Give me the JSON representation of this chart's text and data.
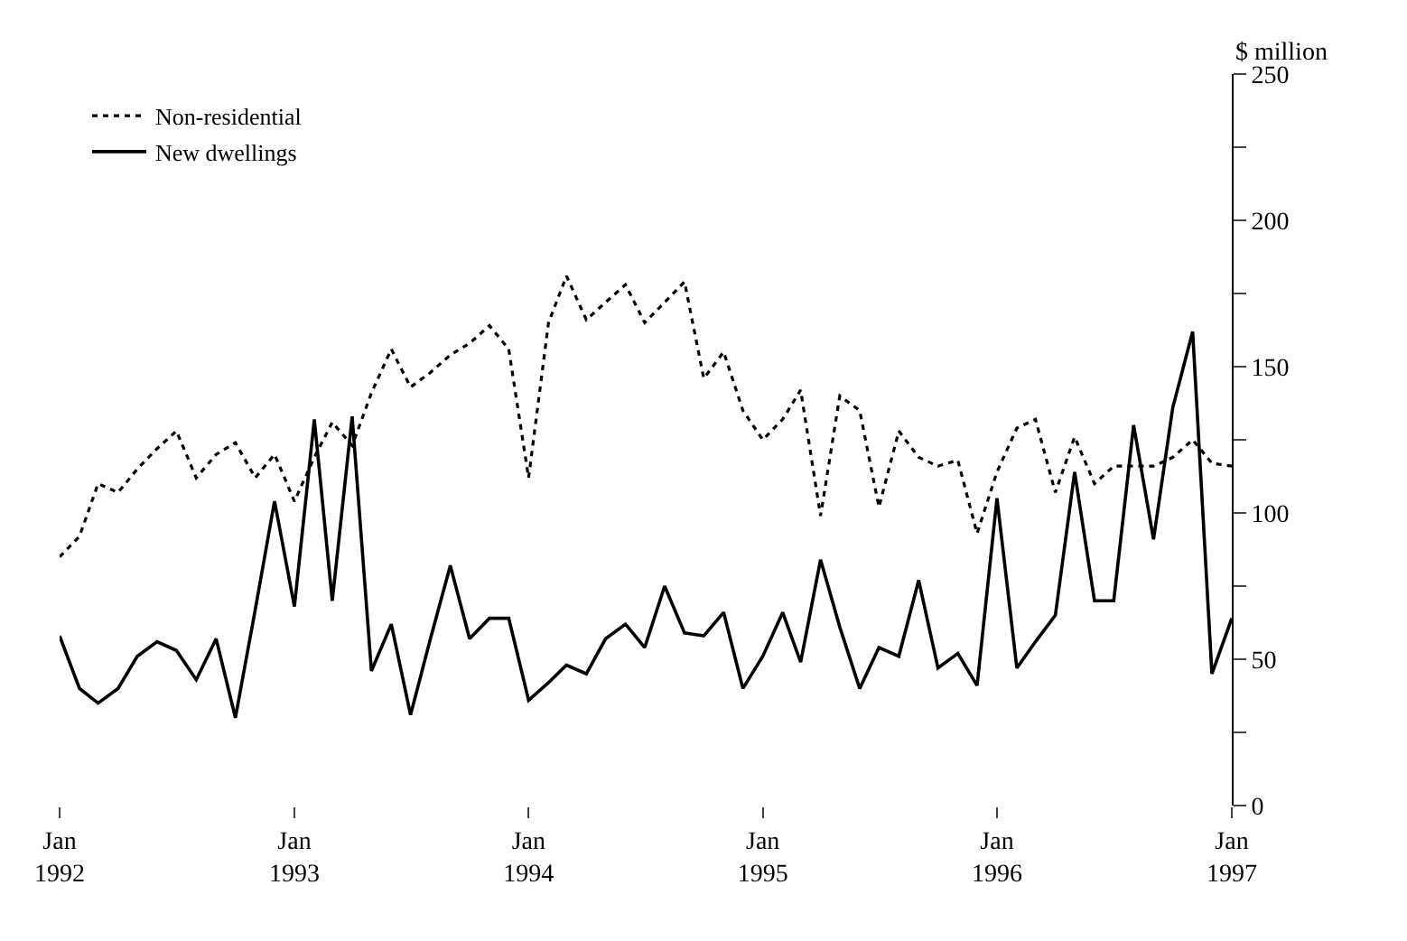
{
  "chart_data": {
    "type": "line",
    "ylabel": "$ million",
    "legend": "top left",
    "marker": "none",
    "x": [
      "1992-01",
      "1992-02",
      "1992-03",
      "1992-04",
      "1992-05",
      "1992-06",
      "1992-07",
      "1992-08",
      "1992-09",
      "1992-10",
      "1992-11",
      "1992-12",
      "1993-01",
      "1993-02",
      "1993-03",
      "1993-04",
      "1993-05",
      "1993-06",
      "1993-07",
      "1993-08",
      "1993-09",
      "1993-10",
      "1993-11",
      "1993-12",
      "1994-01",
      "1994-02",
      "1994-03",
      "1994-04",
      "1994-05",
      "1994-06",
      "1994-07",
      "1994-08",
      "1994-09",
      "1994-10",
      "1994-11",
      "1994-12",
      "1995-01",
      "1995-02",
      "1995-03",
      "1995-04",
      "1995-05",
      "1995-06",
      "1995-07",
      "1995-08",
      "1995-09",
      "1995-10",
      "1995-11",
      "1995-12",
      "1996-01",
      "1996-02",
      "1996-03",
      "1996-04",
      "1996-05",
      "1996-06",
      "1996-07",
      "1996-08",
      "1996-09",
      "1996-10",
      "1996-11",
      "1996-12",
      "1997-01"
    ],
    "series": [
      {
        "name": "Non-residential",
        "color": "#000000",
        "line_style": "dotted",
        "values": [
          85,
          92,
          110,
          107,
          115,
          122,
          128,
          112,
          120,
          124,
          112,
          120,
          104,
          119,
          131,
          123,
          141,
          156,
          143,
          148,
          154,
          158,
          164,
          156,
          112,
          165,
          181,
          166,
          172,
          178,
          165,
          172,
          179,
          146,
          155,
          135,
          125,
          132,
          142,
          99,
          140,
          135,
          102,
          128,
          119,
          116,
          118,
          93,
          114,
          129,
          132,
          107,
          126,
          110,
          116,
          116,
          116,
          119,
          125,
          117,
          116
        ]
      },
      {
        "name": "New dwellings",
        "color": "#000000",
        "line_style": "solid",
        "values": [
          58,
          40,
          35,
          40,
          51,
          56,
          53,
          43,
          57,
          30,
          67,
          104,
          68,
          132,
          70,
          133,
          46,
          62,
          31,
          57,
          82,
          57,
          64,
          64,
          36,
          42,
          48,
          45,
          57,
          62,
          54,
          75,
          59,
          58,
          66,
          40,
          51,
          66,
          49,
          84,
          61,
          40,
          54,
          51,
          77,
          47,
          52,
          41,
          105,
          47,
          56,
          65,
          114,
          70,
          70,
          130,
          91,
          136,
          162,
          45,
          64
        ]
      }
    ],
    "xlim": [
      "1992-01",
      "1997-01"
    ],
    "xticks": [
      {
        "value": "1992-01",
        "label": "Jan\n1992"
      },
      {
        "value": "1993-01",
        "label": "Jan\n1993"
      },
      {
        "value": "1994-01",
        "label": "Jan\n1994"
      },
      {
        "value": "1995-01",
        "label": "Jan\n1995"
      },
      {
        "value": "1996-01",
        "label": "Jan\n1996"
      },
      {
        "value": "1997-01",
        "label": "Jan\n1997"
      }
    ],
    "ylim": [
      0,
      250
    ],
    "yticks": [
      0,
      {
        "value": 25,
        "label": null
      },
      50,
      {
        "value": 75,
        "label": null
      },
      100,
      {
        "value": 125,
        "label": null
      },
      150,
      {
        "value": 175,
        "label": null
      },
      200,
      {
        "value": 225,
        "label": null
      },
      250
    ]
  }
}
